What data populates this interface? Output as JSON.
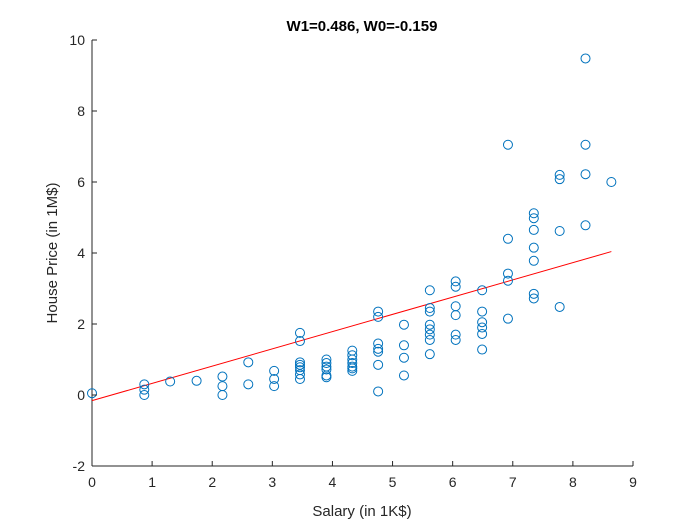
{
  "chart_data": {
    "type": "scatter",
    "title": "W1=0.486, W0=-0.159",
    "xlabel": "Salary (in 1K$)",
    "ylabel": "House Price (in 1M$)",
    "xlim": [
      0,
      9
    ],
    "ylim": [
      -2,
      10
    ],
    "xticks": [
      0,
      1,
      2,
      3,
      4,
      5,
      6,
      7,
      8,
      9
    ],
    "yticks": [
      -2,
      0,
      2,
      4,
      6,
      8,
      10
    ],
    "grid": false,
    "marker_color": "#0072BD",
    "line_color": "#FF0000",
    "series": [
      {
        "type": "scatter",
        "points": [
          [
            0.0,
            0.05
          ],
          [
            0.87,
            0.3
          ],
          [
            0.87,
            0.15
          ],
          [
            0.87,
            0.0
          ],
          [
            1.3,
            0.38
          ],
          [
            1.74,
            0.4
          ],
          [
            2.17,
            0.52
          ],
          [
            2.17,
            0.25
          ],
          [
            2.17,
            0.0
          ],
          [
            2.6,
            0.92
          ],
          [
            2.6,
            0.3
          ],
          [
            3.03,
            0.68
          ],
          [
            3.03,
            0.45
          ],
          [
            3.03,
            0.25
          ],
          [
            3.46,
            1.75
          ],
          [
            3.46,
            1.52
          ],
          [
            3.46,
            0.92
          ],
          [
            3.46,
            0.85
          ],
          [
            3.46,
            0.78
          ],
          [
            3.46,
            0.7
          ],
          [
            3.46,
            0.58
          ],
          [
            3.46,
            0.45
          ],
          [
            3.9,
            1.0
          ],
          [
            3.9,
            0.9
          ],
          [
            3.9,
            0.8
          ],
          [
            3.9,
            0.72
          ],
          [
            3.9,
            0.55
          ],
          [
            3.9,
            0.5
          ],
          [
            4.33,
            1.25
          ],
          [
            4.33,
            1.12
          ],
          [
            4.33,
            1.0
          ],
          [
            4.33,
            0.9
          ],
          [
            4.33,
            0.8
          ],
          [
            4.33,
            0.75
          ],
          [
            4.33,
            0.68
          ],
          [
            4.76,
            2.35
          ],
          [
            4.76,
            2.2
          ],
          [
            4.76,
            1.45
          ],
          [
            4.76,
            1.3
          ],
          [
            4.76,
            1.22
          ],
          [
            4.76,
            0.85
          ],
          [
            4.76,
            0.1
          ],
          [
            5.19,
            1.98
          ],
          [
            5.19,
            1.4
          ],
          [
            5.19,
            1.05
          ],
          [
            5.19,
            0.55
          ],
          [
            5.62,
            2.95
          ],
          [
            5.62,
            2.45
          ],
          [
            5.62,
            2.35
          ],
          [
            5.62,
            1.98
          ],
          [
            5.62,
            1.85
          ],
          [
            5.62,
            1.7
          ],
          [
            5.62,
            1.55
          ],
          [
            5.62,
            1.15
          ],
          [
            6.05,
            3.2
          ],
          [
            6.05,
            3.05
          ],
          [
            6.05,
            2.5
          ],
          [
            6.05,
            2.25
          ],
          [
            6.05,
            1.7
          ],
          [
            6.05,
            1.55
          ],
          [
            6.49,
            2.95
          ],
          [
            6.49,
            2.35
          ],
          [
            6.49,
            2.05
          ],
          [
            6.49,
            1.9
          ],
          [
            6.49,
            1.72
          ],
          [
            6.49,
            1.28
          ],
          [
            6.92,
            7.05
          ],
          [
            6.92,
            4.4
          ],
          [
            6.92,
            3.42
          ],
          [
            6.92,
            3.22
          ],
          [
            6.92,
            2.15
          ],
          [
            7.35,
            5.12
          ],
          [
            7.35,
            4.98
          ],
          [
            7.35,
            4.65
          ],
          [
            7.35,
            4.15
          ],
          [
            7.35,
            3.78
          ],
          [
            7.35,
            2.85
          ],
          [
            7.35,
            2.72
          ],
          [
            7.78,
            6.2
          ],
          [
            7.78,
            6.08
          ],
          [
            7.78,
            4.62
          ],
          [
            7.78,
            2.48
          ],
          [
            8.21,
            9.48
          ],
          [
            8.21,
            7.05
          ],
          [
            8.21,
            6.22
          ],
          [
            8.21,
            4.78
          ],
          [
            8.64,
            6.0
          ]
        ]
      },
      {
        "type": "line",
        "x": [
          0,
          8.64
        ],
        "y": [
          -0.159,
          4.04
        ]
      }
    ]
  }
}
